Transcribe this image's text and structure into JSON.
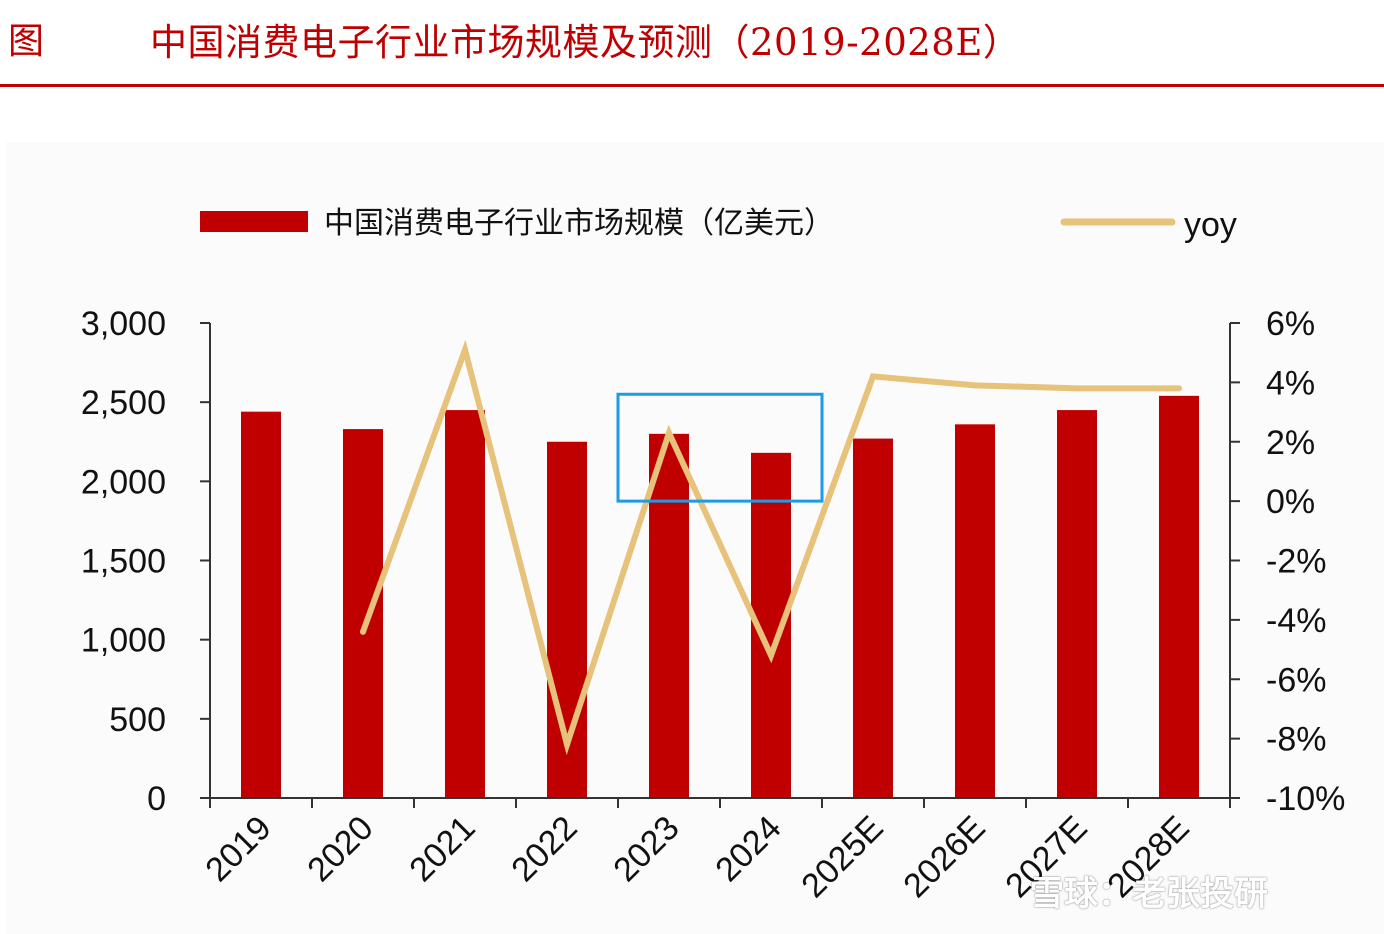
{
  "header": {
    "figure_label": "图",
    "title": "中国消费电子行业市场规模及预测（2019-2028E）"
  },
  "watermark": "雪球：老张投研",
  "colors": {
    "bar": "#c00000",
    "line": "#e6c27a",
    "highlight_box": "#1e9be6",
    "title": "#c00000"
  },
  "chart_data": {
    "type": "bar",
    "categories": [
      "2019",
      "2020",
      "2021",
      "2022",
      "2023",
      "2024",
      "2025E",
      "2026E",
      "2027E",
      "2028E"
    ],
    "series": [
      {
        "name": "中国消费电子行业市场规模（亿美元）",
        "type": "bar",
        "axis": "left",
        "values": [
          2440,
          2330,
          2450,
          2250,
          2300,
          2180,
          2270,
          2360,
          2450,
          2540
        ]
      },
      {
        "name": "yoy",
        "type": "line",
        "axis": "right",
        "values": [
          null,
          -4.4,
          5.1,
          -8.2,
          2.3,
          -5.2,
          4.2,
          3.9,
          3.8,
          3.8
        ]
      }
    ],
    "y_left": {
      "range": [
        0,
        3000
      ],
      "ticks": [
        "0",
        "500",
        "1,000",
        "1,500",
        "2,000",
        "2,500",
        "3,000"
      ]
    },
    "y_right": {
      "range": [
        -10,
        6
      ],
      "ticks": [
        "-10%",
        "-8%",
        "-6%",
        "-4%",
        "-2%",
        "0%",
        "2%",
        "4%",
        "6%"
      ]
    },
    "legend_position": "top",
    "grid": false,
    "highlight": {
      "categories": [
        "2023",
        "2024"
      ],
      "y_range_right": [
        0,
        3.6
      ]
    }
  }
}
